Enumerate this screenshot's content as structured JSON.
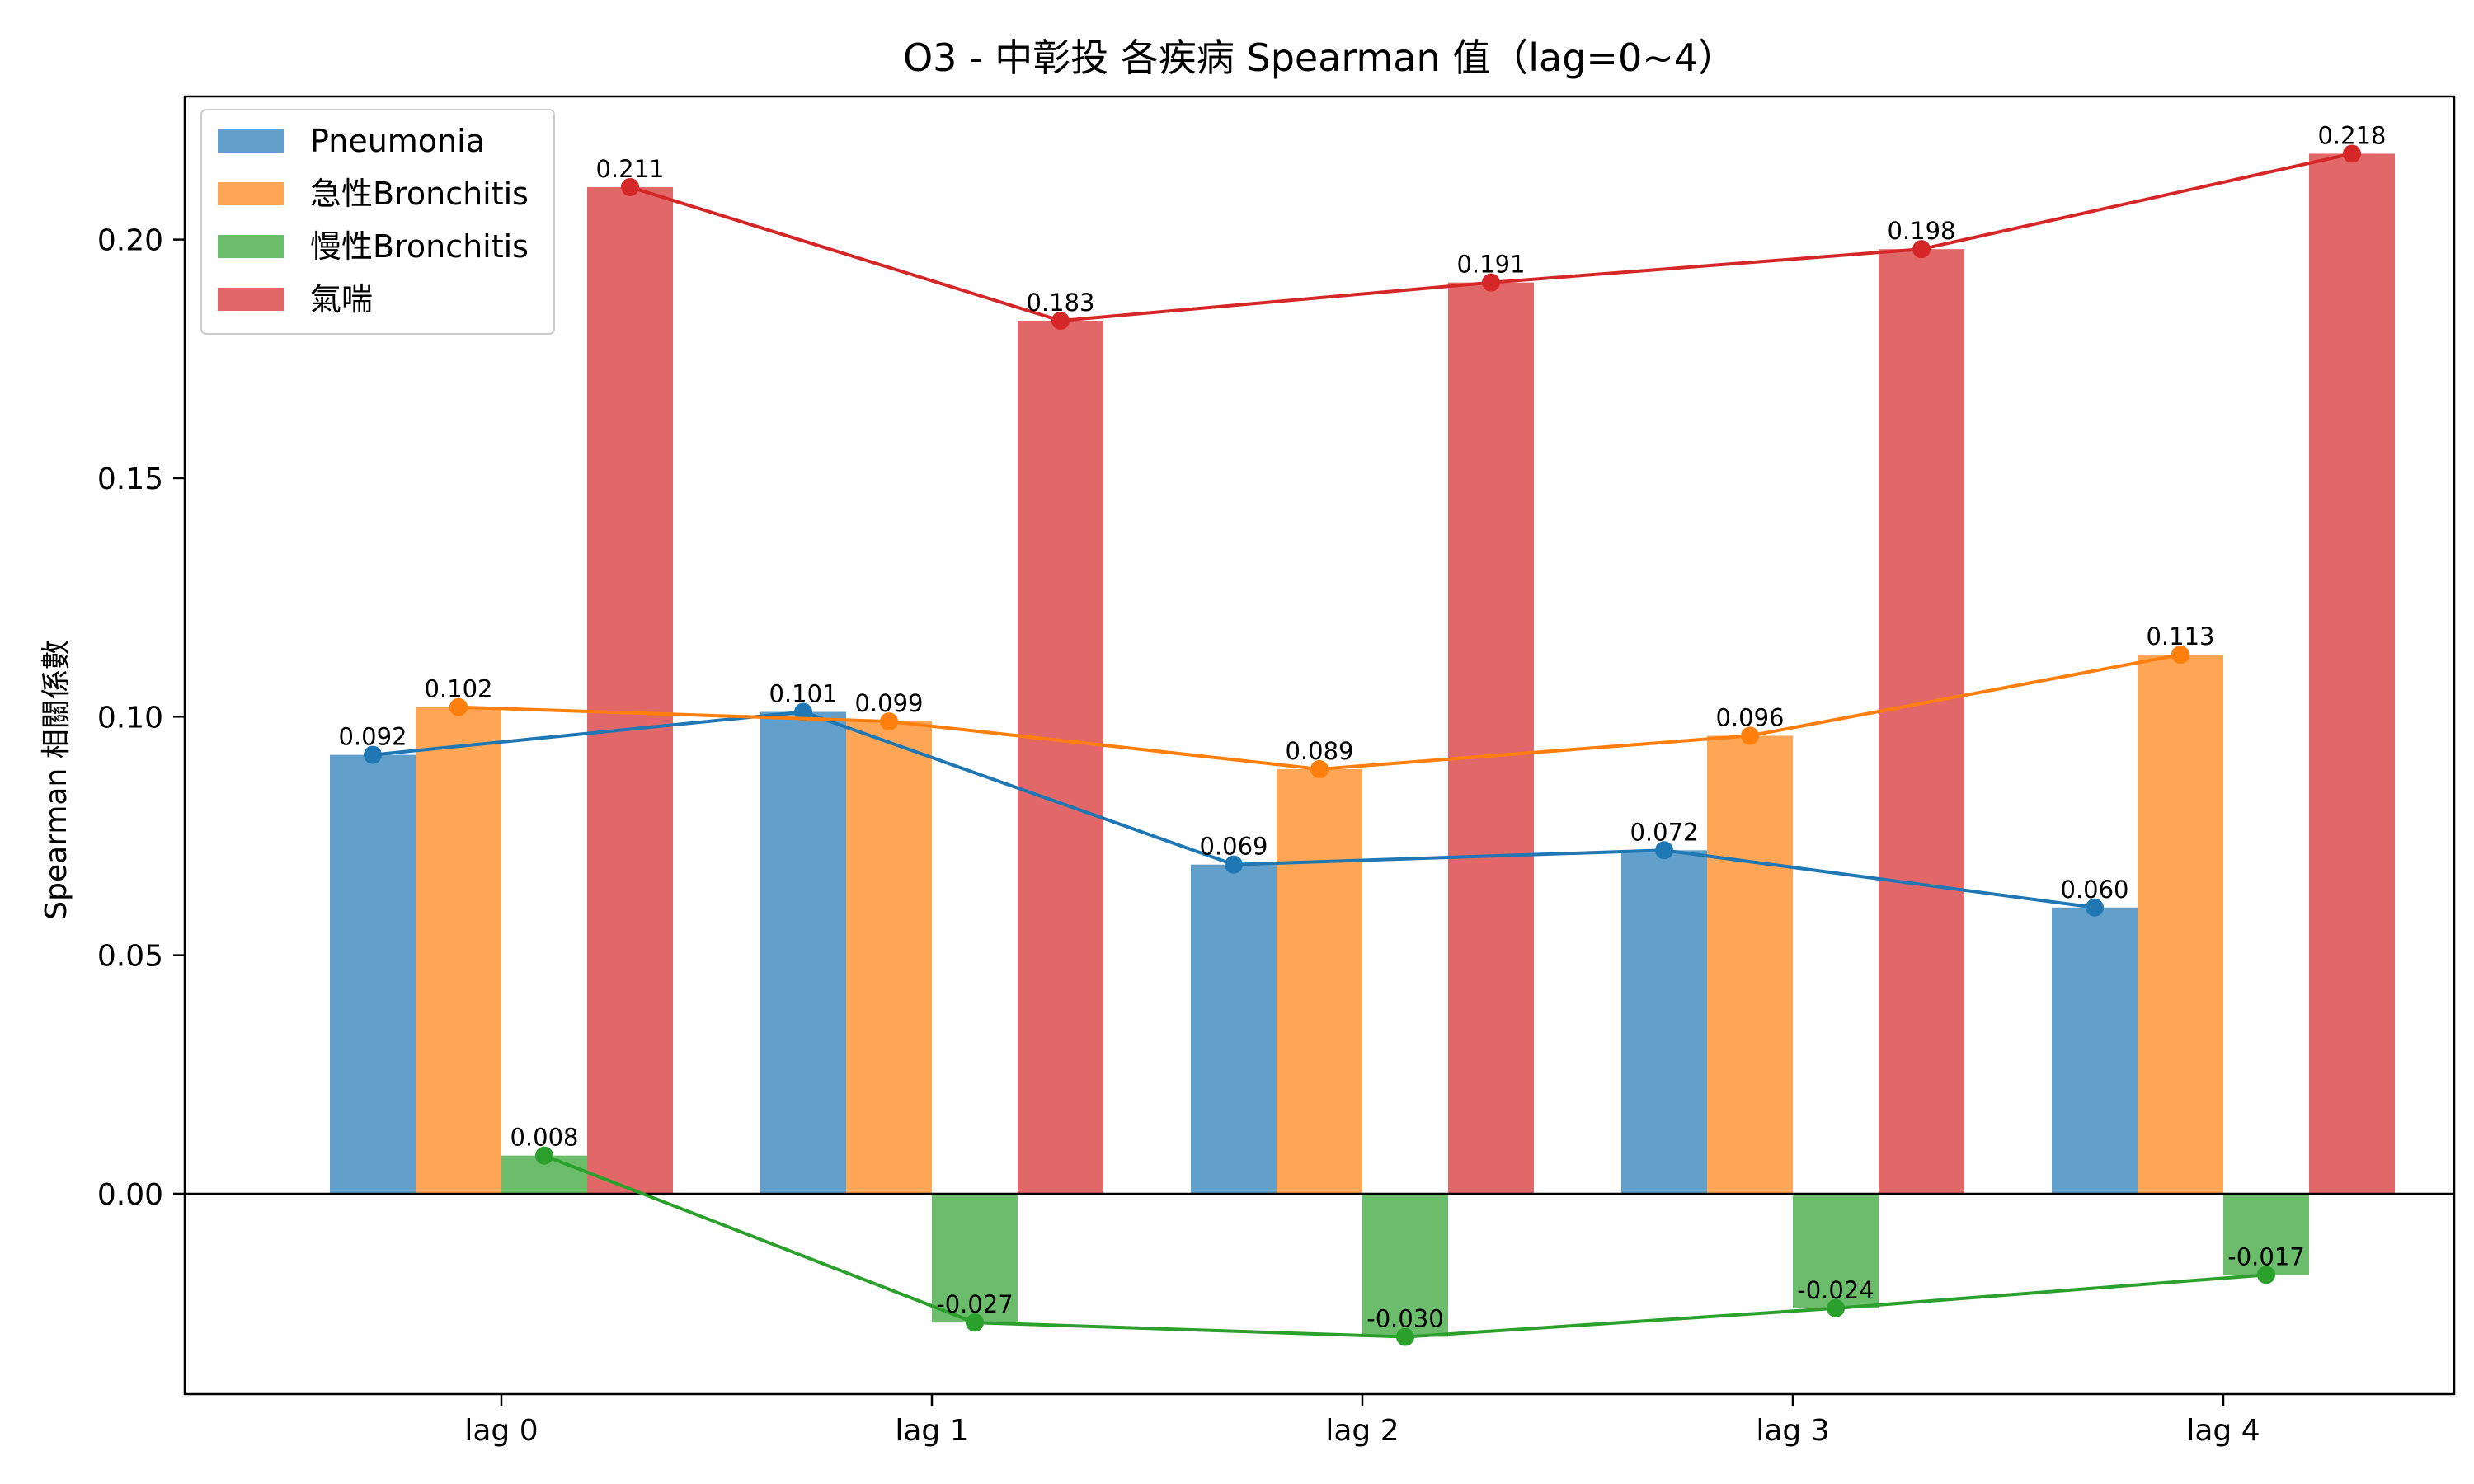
{
  "chart_data": {
    "type": "bar",
    "title": "O3 - 中彰投 各疾病 Spearman 值（lag=0~4）",
    "xlabel": "",
    "ylabel": "Spearman 相關係數",
    "categories": [
      "lag 0",
      "lag 1",
      "lag 2",
      "lag 3",
      "lag 4"
    ],
    "ylim": [
      -0.042,
      0.23
    ],
    "yticks": [
      0.0,
      0.05,
      0.1,
      0.15,
      0.2
    ],
    "ytick_labels": [
      "0.00",
      "0.05",
      "0.10",
      "0.15",
      "0.20"
    ],
    "grid": false,
    "legend_position": "top-left",
    "overlay_lines": true,
    "series": [
      {
        "name": "Pneumonia",
        "bar_color": "#62a0cb",
        "line_color": "#1f77b4",
        "values": [
          0.092,
          0.101,
          0.069,
          0.072,
          0.06
        ],
        "labels": [
          "0.092",
          "0.101",
          "0.069",
          "0.072",
          "0.060"
        ]
      },
      {
        "name": "急性Bronchitis",
        "bar_color": "#ffa556",
        "line_color": "#ff7f0e",
        "values": [
          0.102,
          0.099,
          0.089,
          0.096,
          0.113
        ],
        "labels": [
          "0.102",
          "0.099",
          "0.089",
          "0.096",
          "0.113"
        ]
      },
      {
        "name": "慢性Bronchitis",
        "bar_color": "#6bbc6b",
        "line_color": "#2ca02c",
        "values": [
          0.008,
          -0.027,
          -0.03,
          -0.024,
          -0.017
        ],
        "labels": [
          "0.008",
          "-0.027",
          "-0.030",
          "-0.024",
          "-0.017"
        ]
      },
      {
        "name": "氣喘",
        "bar_color": "#e26768",
        "line_color": "#d62728",
        "values": [
          0.211,
          0.183,
          0.191,
          0.198,
          0.218
        ],
        "labels": [
          "0.211",
          "0.183",
          "0.191",
          "0.198",
          "0.218"
        ]
      }
    ]
  }
}
